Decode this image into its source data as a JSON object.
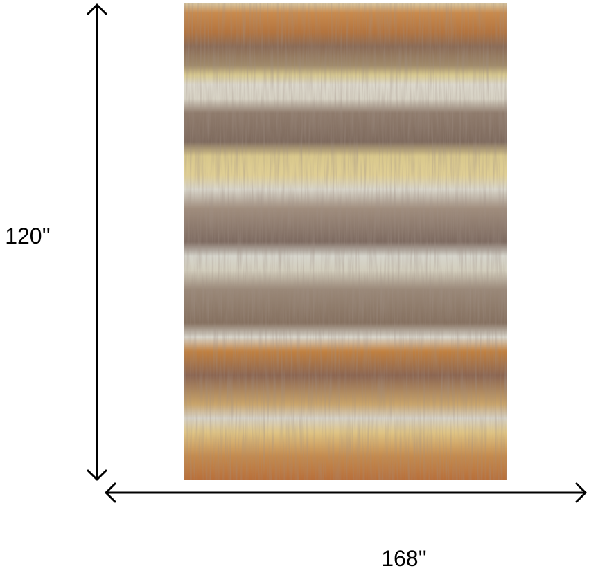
{
  "dimensions": {
    "height_label": "120''",
    "width_label": "168''"
  }
}
